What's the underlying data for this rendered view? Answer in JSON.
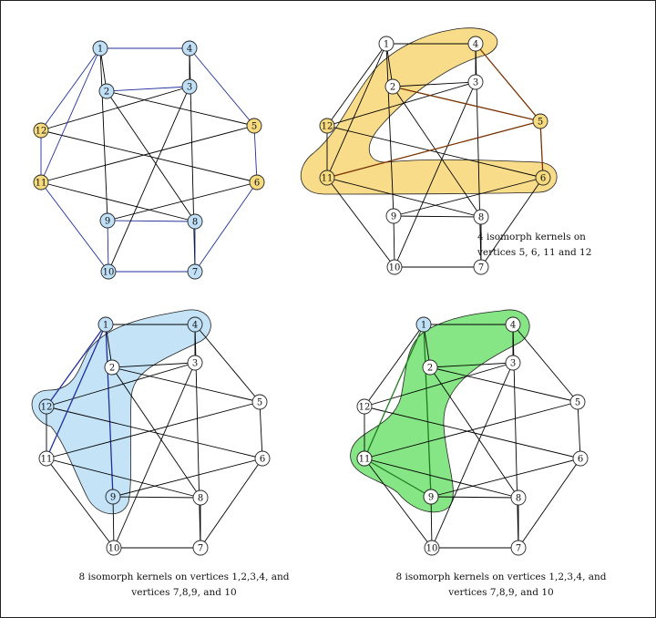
{
  "colors": {
    "edge": "#000000",
    "edge_blue": "#1f2f9a",
    "node_blue_fill": "#bfe0f7",
    "node_yellow_fill": "#f5da7e",
    "node_white_fill": "#ffffff",
    "hl_yellow": "#f8dc8a",
    "hl_blue": "#c5e3f7",
    "hl_green": "#86e584",
    "edge_brown": "#7a3200",
    "edge_green": "#1f7a1f"
  },
  "vertex_labels": [
    "1",
    "2",
    "4",
    "3",
    "5",
    "6",
    "12",
    "11",
    "9",
    "8",
    "10",
    "7"
  ],
  "panel_b_caption": [
    "4 isomorph kernels on",
    "vertices 5, 6, 11 and 12"
  ],
  "panel_c_caption": [
    "8 isomorph kernels on vertices 1,2,3,4, and",
    "vertices 7,8,9, and 10"
  ],
  "panel_d_caption": [
    "8 isomorph kernels on vertices 1,2,3,4, and",
    "vertices 7,8,9, and 10"
  ]
}
